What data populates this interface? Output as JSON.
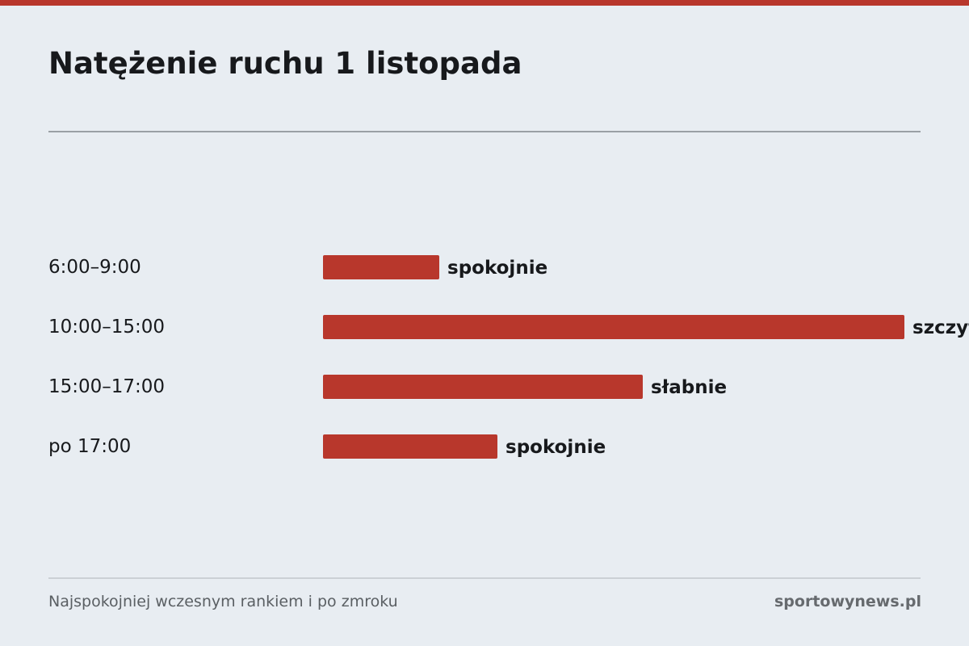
{
  "colors": {
    "accent": "#b8372c",
    "background": "#e8edf2",
    "text": "#17191c"
  },
  "header": {
    "title": "Natężenie ruchu 1 listopada"
  },
  "footer": {
    "note": "Najspokojniej wczesnym rankiem i po zmroku",
    "source": "sportowynews.pl"
  },
  "chart_data": {
    "type": "bar",
    "orientation": "horizontal",
    "title": "Natężenie ruchu 1 listopada",
    "xlabel": "",
    "ylabel": "",
    "grid": false,
    "xlim": [
      0,
      100
    ],
    "categories": [
      "6:00–9:00",
      "10:00–15:00",
      "15:00–17:00",
      "po 17:00"
    ],
    "values": [
      20,
      100,
      55,
      30
    ],
    "data_labels": [
      "spokojnie",
      "szczyt",
      "słabnie",
      "spokojnie"
    ]
  }
}
